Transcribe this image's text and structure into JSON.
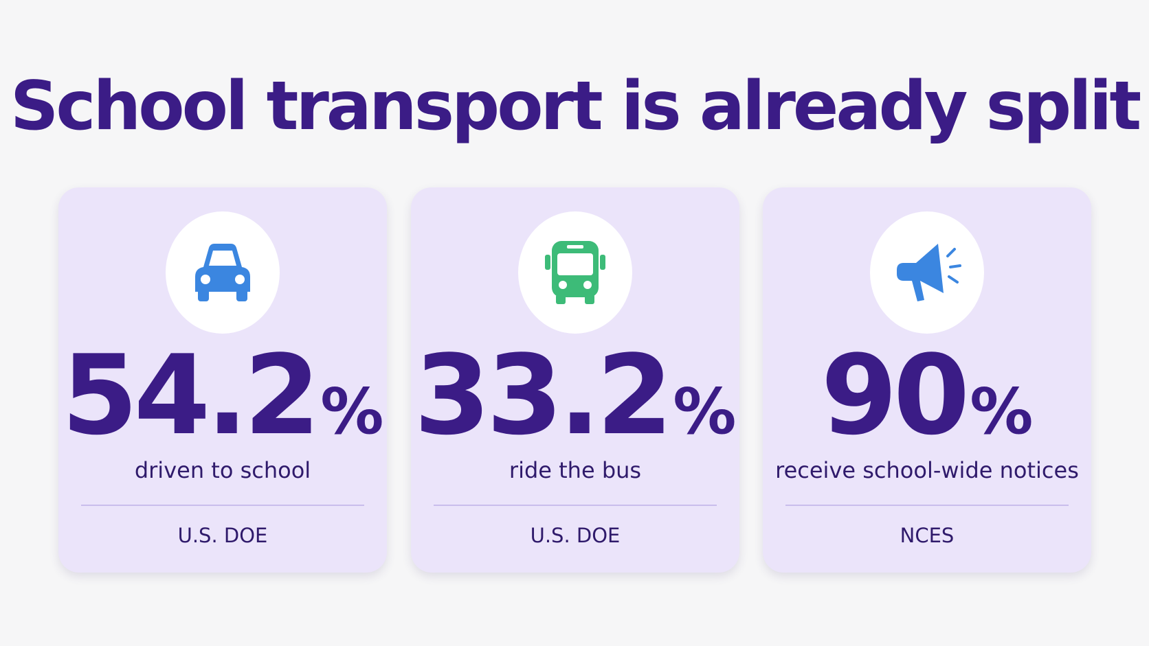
{
  "header": {
    "title": "School transport is already split"
  },
  "stats": [
    {
      "value": "54.2",
      "unit": "%",
      "label": "driven to school",
      "source": "U.S. DOE"
    },
    {
      "value": "33.2",
      "unit": "%",
      "label": "ride the bus",
      "source": "U.S. DOE"
    },
    {
      "value": "90",
      "unit": "%",
      "label": "receive school-wide notices",
      "source": "NCES"
    }
  ]
}
